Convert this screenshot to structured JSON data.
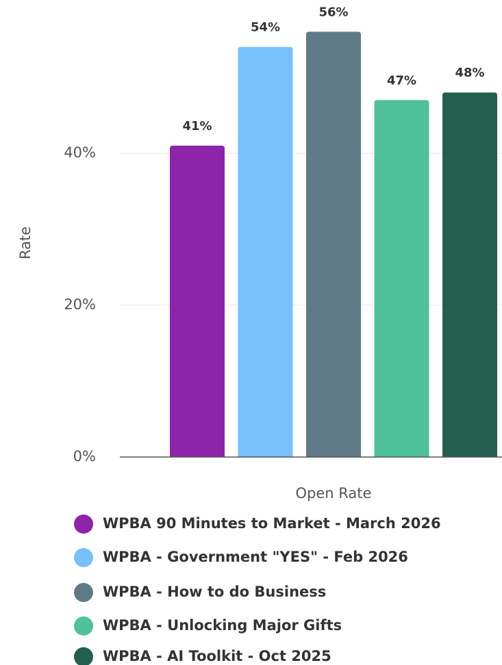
{
  "chart_data": {
    "type": "bar",
    "y_label": "Rate",
    "categories": [
      "Open Rate"
    ],
    "series": [
      {
        "name": "WPBA 90 Minutes to Market - March 2026",
        "color": "#8e24aa",
        "values": [
          41
        ],
        "value_labels": [
          "41%"
        ]
      },
      {
        "name": "WPBA - Government \"YES\" - Feb 2026",
        "color": "#76c0fd",
        "values": [
          54
        ],
        "value_labels": [
          "54%"
        ]
      },
      {
        "name": "WPBA - How to do Business",
        "color": "#5f7a87",
        "values": [
          56
        ],
        "value_labels": [
          "56%"
        ]
      },
      {
        "name": "WPBA - Unlocking Major Gifts",
        "color": "#4fc19b",
        "values": [
          47
        ],
        "value_labels": [
          "47%"
        ]
      },
      {
        "name": "WPBA - AI Toolkit - Oct 2025",
        "color": "#235e4e",
        "values": [
          48
        ],
        "value_labels": [
          "48%"
        ]
      }
    ],
    "ylim": [
      0,
      60
    ],
    "yticks": [
      {
        "value": 0,
        "label": "0%"
      },
      {
        "value": 20,
        "label": "20%"
      },
      {
        "value": 40,
        "label": "40%"
      }
    ],
    "grid": true
  }
}
